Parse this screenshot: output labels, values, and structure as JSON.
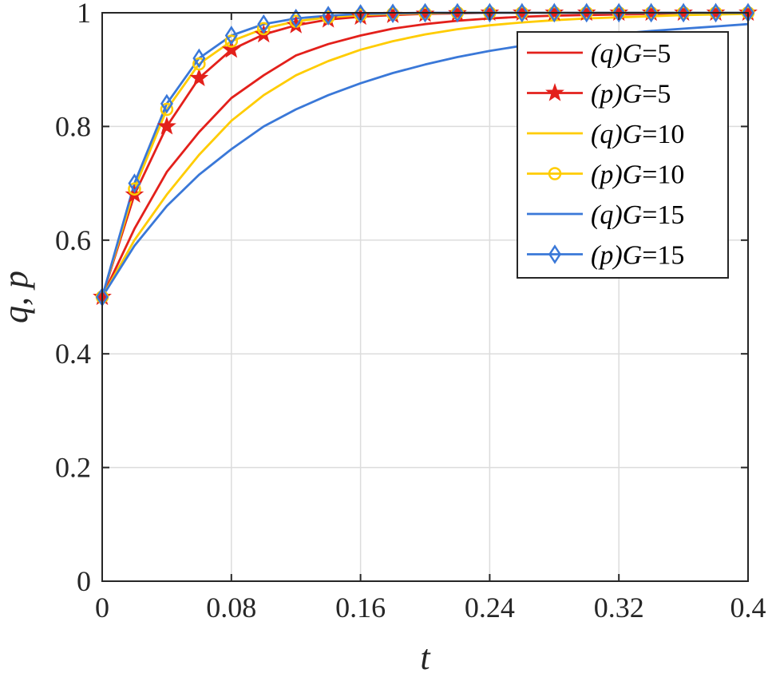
{
  "chart_data": {
    "type": "line",
    "xlabel": "t",
    "ylabel": "q, p",
    "xlim": [
      0,
      0.4
    ],
    "ylim": [
      0,
      1
    ],
    "xticks": [
      0,
      0.08,
      0.16,
      0.24,
      0.32,
      0.4
    ],
    "xtick_labels": [
      "0",
      "0.08",
      "0.16",
      "0.24",
      "0.32",
      "0.4"
    ],
    "yticks": [
      0,
      0.2,
      0.4,
      0.6,
      0.8,
      1
    ],
    "ytick_labels": [
      "0",
      "0.2",
      "0.4",
      "0.6",
      "0.8",
      "1"
    ],
    "grid": true,
    "legend_position": "top-right",
    "x": [
      0,
      0.02,
      0.04,
      0.06,
      0.08,
      0.1,
      0.12,
      0.14,
      0.16,
      0.18,
      0.2,
      0.22,
      0.24,
      0.26,
      0.28,
      0.3,
      0.32,
      0.34,
      0.36,
      0.38,
      0.4
    ],
    "series": [
      {
        "name": "(q)G=5",
        "legend_prefix": "(q)",
        "legend_suffix": "G=5",
        "color": "#e3201b",
        "marker": "none",
        "values": [
          0.5,
          0.62,
          0.72,
          0.79,
          0.85,
          0.89,
          0.925,
          0.945,
          0.96,
          0.972,
          0.98,
          0.986,
          0.99,
          0.993,
          0.995,
          0.996,
          0.997,
          0.998,
          0.999,
          0.999,
          1.0
        ]
      },
      {
        "name": "(p)G=5",
        "legend_prefix": "(p)",
        "legend_suffix": "G=5",
        "color": "#e3201b",
        "marker": "star",
        "values": [
          0.5,
          0.68,
          0.8,
          0.885,
          0.935,
          0.962,
          0.978,
          0.988,
          0.993,
          0.996,
          0.998,
          0.999,
          1.0,
          1.0,
          1.0,
          1.0,
          1.0,
          1.0,
          1.0,
          1.0,
          1.0
        ]
      },
      {
        "name": "(q)G=10",
        "legend_prefix": "(q)",
        "legend_suffix": "G=10",
        "color": "#ffcc00",
        "marker": "none",
        "values": [
          0.5,
          0.6,
          0.68,
          0.75,
          0.81,
          0.855,
          0.89,
          0.915,
          0.935,
          0.95,
          0.962,
          0.971,
          0.978,
          0.983,
          0.987,
          0.99,
          0.992,
          0.994,
          0.996,
          0.997,
          0.998
        ]
      },
      {
        "name": "(p)G=10",
        "legend_prefix": "(p)",
        "legend_suffix": "G=10",
        "color": "#ffcc00",
        "marker": "circle",
        "values": [
          0.5,
          0.69,
          0.83,
          0.91,
          0.95,
          0.972,
          0.985,
          0.992,
          0.996,
          0.998,
          0.999,
          1.0,
          1.0,
          1.0,
          1.0,
          1.0,
          1.0,
          1.0,
          1.0,
          1.0,
          1.0
        ]
      },
      {
        "name": "(q)G=15",
        "legend_prefix": "(q)",
        "legend_suffix": "G=15",
        "color": "#3a78d8",
        "marker": "none",
        "values": [
          0.5,
          0.59,
          0.66,
          0.715,
          0.76,
          0.8,
          0.83,
          0.855,
          0.876,
          0.894,
          0.909,
          0.922,
          0.933,
          0.942,
          0.95,
          0.957,
          0.963,
          0.968,
          0.972,
          0.976,
          0.98
        ]
      },
      {
        "name": "(p)G=15",
        "legend_prefix": "(p)",
        "legend_suffix": "G=15",
        "color": "#3a78d8",
        "marker": "diamond",
        "values": [
          0.5,
          0.7,
          0.84,
          0.92,
          0.96,
          0.98,
          0.99,
          0.995,
          0.998,
          0.999,
          1.0,
          1.0,
          1.0,
          1.0,
          1.0,
          1.0,
          1.0,
          1.0,
          1.0,
          1.0,
          1.0
        ]
      }
    ]
  }
}
